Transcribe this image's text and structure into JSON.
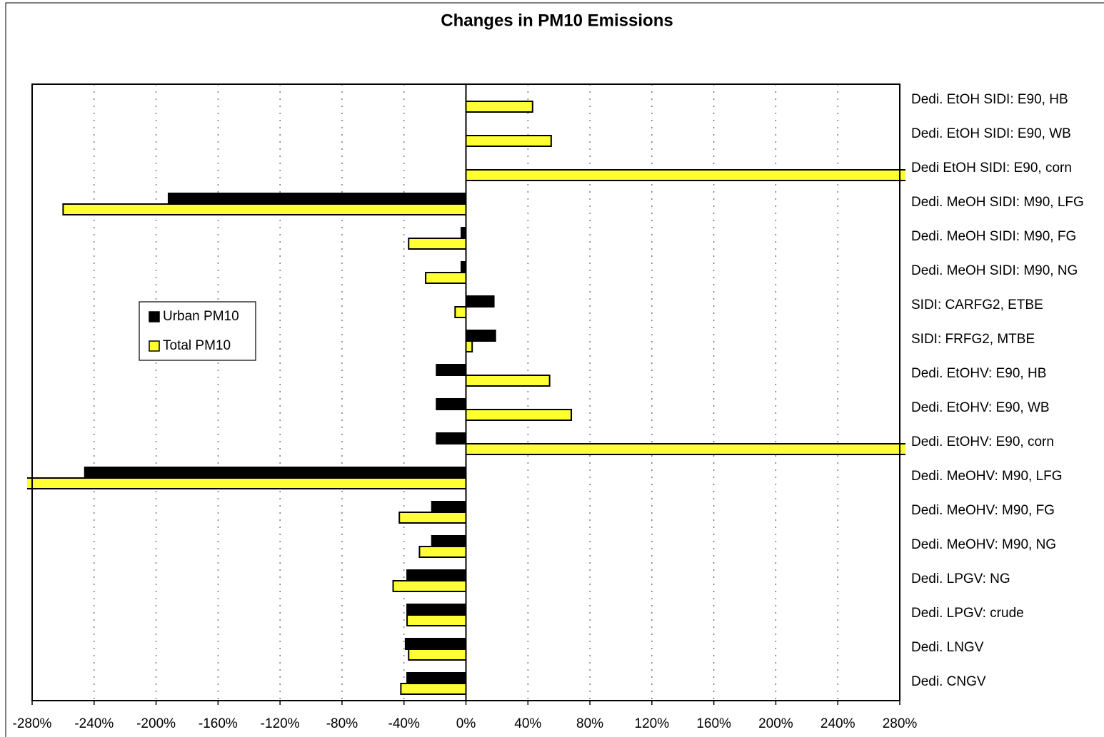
{
  "chart_data": {
    "type": "hbar",
    "title": "Changes in PM10 Emissions",
    "categories": [
      "Dedi. EtOH SIDI: E90, HB",
      "Dedi. EtOH SIDI: E90, WB",
      "Dedi EtOH SIDI: E90, corn",
      "Dedi. MeOH SIDI: M90, LFG",
      "Dedi. MeOH SIDI: M90, FG",
      "Dedi. MeOH SIDI: M90, NG",
      "SIDI: CARFG2, ETBE",
      "SIDI: FRFG2, MTBE",
      "Dedi. EtOHV: E90, HB",
      "Dedi. EtOHV: E90, WB",
      "Dedi. EtOHV: E90, corn",
      "Dedi. MeOHV: M90, LFG",
      "Dedi. MeOHV: M90, FG",
      "Dedi. MeOHV: M90, NG",
      "Dedi. LPGV: NG",
      "Dedi. LPGV: crude",
      "Dedi. LNGV",
      "Dedi. CNGV"
    ],
    "series": [
      {
        "name": "Urban PM10",
        "color": "#000000",
        "values": [
          0,
          0,
          0,
          -192,
          -3,
          -3,
          18,
          19,
          -19,
          -19,
          -19,
          -246,
          -22,
          -22,
          -38,
          -38,
          -39,
          -38
        ]
      },
      {
        "name": "Total PM10",
        "color": "#ffff33",
        "values": [
          43,
          55,
          300,
          -260,
          -37,
          -26,
          -7,
          4,
          54,
          68,
          300,
          -290,
          -43,
          -30,
          -47,
          -38,
          -37,
          -42
        ]
      }
    ],
    "xlim": [
      -280,
      280
    ],
    "xticks": [
      {
        "value": -280,
        "label": "-280%"
      },
      {
        "value": -240,
        "label": "-240%"
      },
      {
        "value": -200,
        "label": "-200%"
      },
      {
        "value": -160,
        "label": "-160%"
      },
      {
        "value": -120,
        "label": "-120%"
      },
      {
        "value": -80,
        "label": "-80%"
      },
      {
        "value": -40,
        "label": "-40%"
      },
      {
        "value": 0,
        "label": "0%"
      },
      {
        "value": 40,
        "label": "40%"
      },
      {
        "value": 80,
        "label": "80%"
      },
      {
        "value": 120,
        "label": "120%"
      },
      {
        "value": 160,
        "label": "160%"
      },
      {
        "value": 200,
        "label": "200%"
      },
      {
        "value": 240,
        "label": "240%"
      },
      {
        "value": 280,
        "label": "280%"
      }
    ],
    "grid": true
  }
}
